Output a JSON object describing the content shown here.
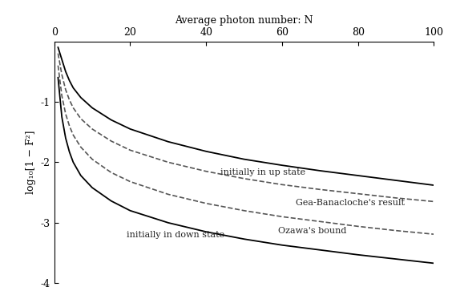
{
  "chart_data": {
    "type": "line",
    "x_label": "Average photon number: N",
    "y_label": "log₁₀[1 − F²]",
    "x": [
      1,
      2,
      3,
      4,
      5,
      7,
      10,
      15,
      20,
      30,
      40,
      50,
      60,
      70,
      80,
      90,
      100
    ],
    "series": [
      {
        "name": "initially in up state",
        "color": "#000000",
        "line_style": "solid",
        "values": [
          -0.1,
          -0.3,
          -0.5,
          -0.65,
          -0.77,
          -0.93,
          -1.1,
          -1.3,
          -1.45,
          -1.66,
          -1.82,
          -1.95,
          -2.05,
          -2.14,
          -2.22,
          -2.3,
          -2.38
        ]
      },
      {
        "name": "Gea-Banacloche's result",
        "color": "#555555",
        "line_style": "dashed",
        "values": [
          -0.2,
          -0.55,
          -0.8,
          -0.97,
          -1.1,
          -1.28,
          -1.45,
          -1.65,
          -1.8,
          -2.0,
          -2.15,
          -2.27,
          -2.37,
          -2.45,
          -2.52,
          -2.59,
          -2.65
        ]
      },
      {
        "name": "Ozawa's bound",
        "color": "#555555",
        "line_style": "dashed",
        "values": [
          -0.4,
          -0.9,
          -1.2,
          -1.4,
          -1.55,
          -1.75,
          -1.95,
          -2.17,
          -2.32,
          -2.53,
          -2.68,
          -2.8,
          -2.9,
          -2.98,
          -3.06,
          -3.13,
          -3.19
        ]
      },
      {
        "name": "initially in down state",
        "color": "#000000",
        "line_style": "solid",
        "values": [
          -0.6,
          -1.25,
          -1.6,
          -1.83,
          -2.0,
          -2.22,
          -2.42,
          -2.64,
          -2.8,
          -3.0,
          -3.15,
          -3.27,
          -3.37,
          -3.45,
          -3.53,
          -3.6,
          -3.67
        ]
      }
    ],
    "xlim": [
      0,
      100
    ],
    "xticks": [
      0,
      20,
      40,
      60,
      80,
      100
    ],
    "ylim": [
      -4,
      0
    ],
    "yticks": [
      -4,
      -3,
      -2,
      -1
    ],
    "grid": false
  }
}
